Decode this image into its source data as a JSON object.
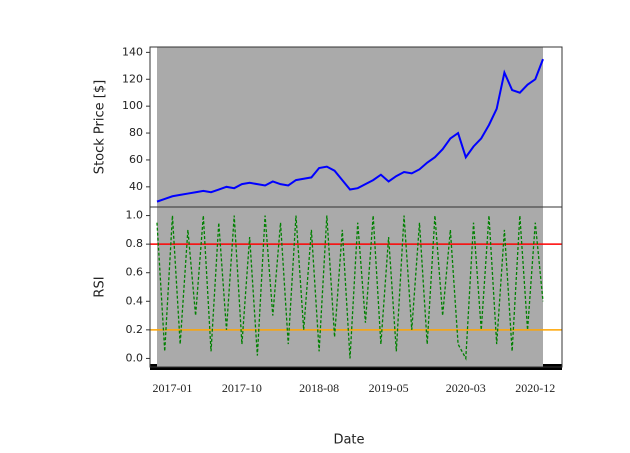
{
  "chart_data": [
    {
      "type": "line",
      "ylabel": "Stock Price [$]",
      "x": [
        "2016-11",
        "2016-12",
        "2017-01",
        "2017-02",
        "2017-03",
        "2017-04",
        "2017-05",
        "2017-06",
        "2017-07",
        "2017-08",
        "2017-09",
        "2017-10",
        "2017-11",
        "2017-12",
        "2018-01",
        "2018-02",
        "2018-03",
        "2018-04",
        "2018-05",
        "2018-06",
        "2018-07",
        "2018-08",
        "2018-09",
        "2018-10",
        "2018-11",
        "2018-12",
        "2019-01",
        "2019-02",
        "2019-03",
        "2019-04",
        "2019-05",
        "2019-06",
        "2019-07",
        "2019-08",
        "2019-09",
        "2019-10",
        "2019-11",
        "2019-12",
        "2020-01",
        "2020-02",
        "2020-03",
        "2020-04",
        "2020-05",
        "2020-06",
        "2020-07",
        "2020-08",
        "2020-09",
        "2020-10",
        "2020-11",
        "2020-12",
        "2021-01"
      ],
      "xlim": [
        "2016-11",
        "2021-01"
      ],
      "series": [
        {
          "color": "#0000ff",
          "values": [
            29,
            31,
            33,
            34,
            35,
            36,
            37,
            36,
            38,
            40,
            39,
            42,
            43,
            42,
            41,
            44,
            42,
            41,
            45,
            46,
            47,
            54,
            55,
            52,
            45,
            38,
            39,
            42,
            45,
            49,
            44,
            48,
            51,
            50,
            53,
            58,
            62,
            68,
            76,
            80,
            62,
            70,
            76,
            86,
            98,
            125,
            112,
            110,
            116,
            120,
            135
          ]
        }
      ],
      "ylim": [
        25,
        144
      ],
      "yticks": [
        40,
        60,
        80,
        100,
        120,
        140
      ],
      "background": "#aaaaaa"
    },
    {
      "type": "line",
      "ylabel": "RSI",
      "xlabel": "Date",
      "x": [
        "2016-11",
        "2016-12",
        "2017-01",
        "2017-02",
        "2017-03",
        "2017-04",
        "2017-05",
        "2017-06",
        "2017-07",
        "2017-08",
        "2017-09",
        "2017-10",
        "2017-11",
        "2017-12",
        "2018-01",
        "2018-02",
        "2018-03",
        "2018-04",
        "2018-05",
        "2018-06",
        "2018-07",
        "2018-08",
        "2018-09",
        "2018-10",
        "2018-11",
        "2018-12",
        "2019-01",
        "2019-02",
        "2019-03",
        "2019-04",
        "2019-05",
        "2019-06",
        "2019-07",
        "2019-08",
        "2019-09",
        "2019-10",
        "2019-11",
        "2019-12",
        "2020-01",
        "2020-02",
        "2020-03",
        "2020-04",
        "2020-05",
        "2020-06",
        "2020-07",
        "2020-08",
        "2020-09",
        "2020-10",
        "2020-11",
        "2020-12",
        "2021-01"
      ],
      "xlim": [
        "2016-11",
        "2021-01"
      ],
      "xticks": [
        "2017-01",
        "2017-10",
        "2018-08",
        "2019-05",
        "2020-03",
        "2020-12"
      ],
      "series": [
        {
          "color": "#008000",
          "values": [
            0.95,
            0.05,
            1.0,
            0.1,
            0.9,
            0.3,
            1.0,
            0.05,
            0.95,
            0.2,
            1.0,
            0.1,
            0.85,
            0.02,
            1.0,
            0.3,
            0.95,
            0.1,
            1.0,
            0.2,
            0.9,
            0.05,
            1.0,
            0.15,
            0.9,
            0.0,
            0.95,
            0.25,
            1.0,
            0.1,
            0.85,
            0.05,
            1.0,
            0.2,
            0.95,
            0.1,
            1.0,
            0.3,
            0.9,
            0.1,
            0.0,
            0.95,
            0.2,
            1.0,
            0.1,
            0.9,
            0.05,
            1.0,
            0.2,
            0.95,
            0.4
          ]
        }
      ],
      "hlines": [
        {
          "value": 0.8,
          "color": "#ff0000"
        },
        {
          "value": 0.2,
          "color": "#ffa500"
        }
      ],
      "ylim": [
        -0.06,
        1.06
      ],
      "yticks": [
        {
          "value": 0,
          "label": "0.0"
        },
        0.2,
        0.4,
        0.6,
        0.8,
        {
          "value": 1,
          "label": "1.0"
        }
      ],
      "background": "#aaaaaa"
    }
  ]
}
